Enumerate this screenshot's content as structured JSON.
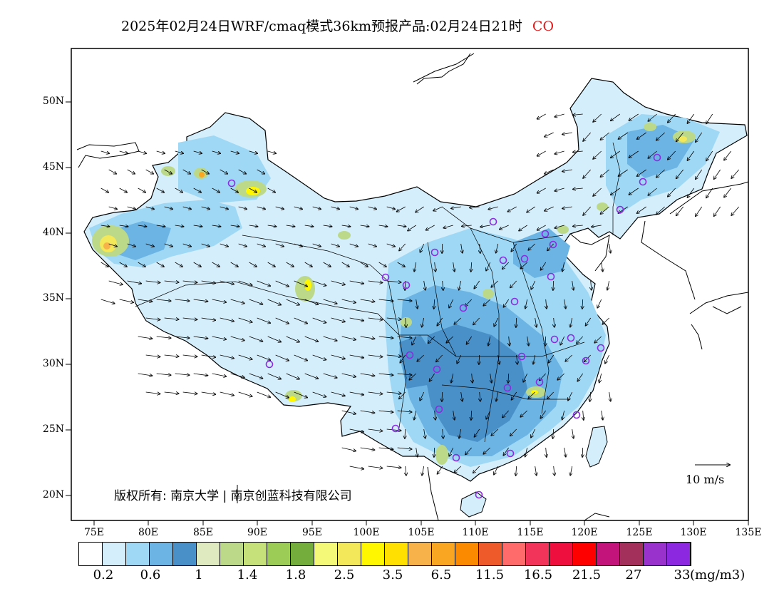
{
  "title": {
    "text": "2025年02月24日WRF/cmaq模式36km预报产品:02月24日21时",
    "species": "CO",
    "species_color": "#e01a1a"
  },
  "map": {
    "lat_labels": [
      "50N",
      "45N",
      "40N",
      "35N",
      "30N",
      "25N",
      "20N"
    ],
    "lon_labels": [
      "75E",
      "80E",
      "85E",
      "90E",
      "95E",
      "100E",
      "105E",
      "110E",
      "115E",
      "120E",
      "125E",
      "130E",
      "135E"
    ],
    "copyright": "版权所有: 南京大学 | 南京创蓝科技有限公司",
    "wind_reference": "10 m/s",
    "site_marker_color": "#8a2be2"
  },
  "colorbar": {
    "colors": [
      "#ffffff",
      "#d4eefb",
      "#9fd8f5",
      "#6cb4e3",
      "#4a90c8",
      "#dfeac0",
      "#bcd98a",
      "#c6e07a",
      "#9ccc55",
      "#74ad3b",
      "#f4fa78",
      "#f3e75a",
      "#fff700",
      "#ffe000",
      "#f7b24a",
      "#f9a623",
      "#fb8a00",
      "#ef5a2a",
      "#ff6a6a",
      "#f2345a",
      "#ee0f3f",
      "#ff0000",
      "#c3147c",
      "#a3305a",
      "#9932cc",
      "#8c29e0"
    ],
    "labels": [
      "0.2",
      "0.6",
      "1",
      "1.4",
      "1.8",
      "2.5",
      "3.5",
      "6.5",
      "11.5",
      "16.5",
      "21.5",
      "27",
      "33"
    ],
    "unit": "(mg/m3)"
  }
}
